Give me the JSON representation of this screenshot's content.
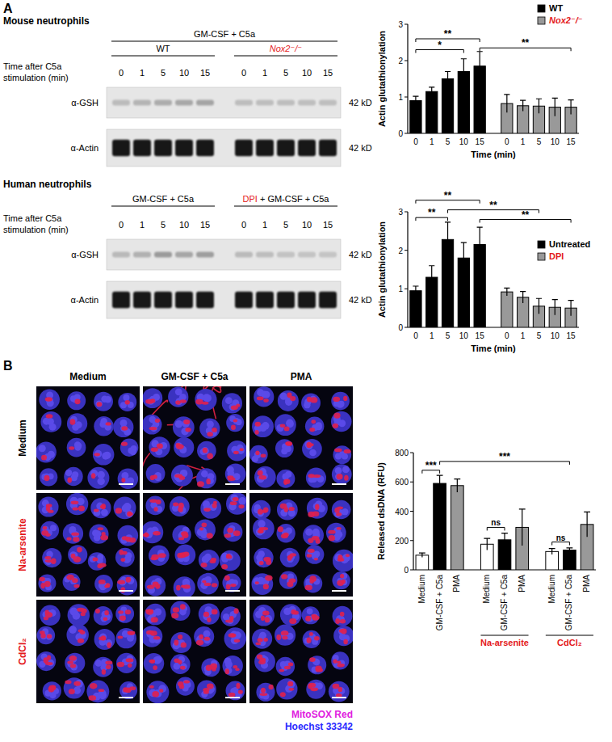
{
  "panel_labels": [
    "A",
    "B"
  ],
  "blots": [
    {
      "title": "Mouse neutrophils",
      "header": "GM-CSF + C5a",
      "groups": [
        [
          {
            "text": "WT"
          }
        ],
        [
          {
            "text": "Nox2⁻/⁻",
            "color": "#e41a1c",
            "italic": true
          }
        ]
      ],
      "time_label": [
        "Time after C5a",
        "stimulation (min)"
      ],
      "lanes": [
        "0",
        "1",
        "5",
        "10",
        "15",
        "0",
        "1",
        "5",
        "10",
        "15"
      ],
      "rows": [
        {
          "label": "α-GSH",
          "size": "42 kD"
        },
        {
          "label": "α-Actin",
          "size": "42 kD"
        }
      ]
    },
    {
      "title": "Human neutrophils",
      "groups": [
        [
          {
            "text": "GM-CSF + C5a"
          }
        ],
        [
          {
            "text": "DPI",
            "color": "#e41a1c"
          },
          {
            "text": " + GM-CSF + C5a"
          }
        ]
      ],
      "time_label": [
        "Time after C5a",
        "stimulation (min)"
      ],
      "lanes": [
        "0",
        "1",
        "5",
        "10",
        "15",
        "0",
        "1",
        "5",
        "10",
        "15"
      ],
      "rows": [
        {
          "label": "α-GSH",
          "size": "42 kD"
        },
        {
          "label": "α-Actin",
          "size": "42 kD"
        }
      ]
    }
  ],
  "microscopy": {
    "columns": [
      "Medium",
      "GM-CSF + C5a",
      "PMA"
    ],
    "rows": [
      {
        "label": "Medium"
      },
      {
        "label": "Na-arsenite",
        "color": "#e41a1c"
      },
      {
        "label": "CdCl₂",
        "color": "#e41a1c"
      }
    ],
    "stains": [
      {
        "label": "MitoSOX Red",
        "color": "#e020e0"
      },
      {
        "label": "Hoechst 33342",
        "color": "#2a2aff"
      }
    ]
  },
  "chart_data": [
    {
      "type": "bar",
      "y_label": "Actin glutathionylation",
      "x_label": "Time (min)",
      "categories": [
        "0",
        "1",
        "5",
        "10",
        "15",
        "0",
        "1",
        "5",
        "10",
        "15"
      ],
      "series": [
        {
          "name": "WT",
          "color": "#000000",
          "values": [
            0.9,
            1.15,
            1.5,
            1.7,
            1.85,
            null,
            null,
            null,
            null,
            null
          ],
          "errors": [
            0.12,
            0.12,
            0.2,
            0.35,
            0.4,
            null,
            null,
            null,
            null,
            null
          ]
        },
        {
          "name": "Nox2⁻/⁻",
          "color": "#999999",
          "values": [
            null,
            null,
            null,
            null,
            null,
            0.82,
            0.76,
            0.75,
            0.72,
            0.72
          ],
          "errors": [
            null,
            null,
            null,
            null,
            null,
            0.25,
            0.15,
            0.2,
            0.25,
            0.2
          ]
        }
      ],
      "ylim": [
        0,
        3
      ],
      "yticks": [
        0,
        1,
        2,
        3
      ],
      "legend": "top-right",
      "annotations": [
        {
          "text": "*",
          "from": 0,
          "to": 3,
          "y": 2.3
        },
        {
          "text": "**",
          "from": 0,
          "to": 4,
          "y": 2.6
        },
        {
          "text": "**",
          "from": 4,
          "to": 9,
          "y": 2.35
        }
      ]
    },
    {
      "type": "bar",
      "y_label": "Actin glutathionylation",
      "x_label": "Time (min)",
      "categories": [
        "0",
        "1",
        "5",
        "10",
        "15",
        "0",
        "1",
        "5",
        "10",
        "15"
      ],
      "series": [
        {
          "name": "Untreated",
          "color": "#000000",
          "values": [
            0.95,
            1.3,
            2.28,
            1.8,
            2.15,
            null,
            null,
            null,
            null,
            null
          ],
          "errors": [
            0.12,
            0.3,
            0.45,
            0.4,
            0.45,
            null,
            null,
            null,
            null,
            null
          ]
        },
        {
          "name": "DPI",
          "color": "#999999",
          "values": [
            null,
            null,
            null,
            null,
            null,
            0.92,
            0.78,
            0.55,
            0.52,
            0.5
          ],
          "errors": [
            null,
            null,
            null,
            null,
            null,
            0.1,
            0.15,
            0.2,
            0.2,
            0.2
          ]
        }
      ],
      "ylim": [
        0,
        3
      ],
      "yticks": [
        0,
        1,
        2,
        3
      ],
      "legend": "right",
      "annotations": [
        {
          "text": "**",
          "from": 0,
          "to": 2,
          "y": 2.85
        },
        {
          "text": "**",
          "from": 0,
          "to": 4,
          "y": 3.3
        },
        {
          "text": "**",
          "from": 2,
          "to": 7,
          "y": 3.05
        },
        {
          "text": "**",
          "from": 4,
          "to": 9,
          "y": 2.8
        }
      ]
    },
    {
      "type": "bar",
      "y_label": "Released dsDNA (RFU)",
      "categories": [
        "Medium",
        "GM-CSF + C5a",
        "PMA",
        "Medium",
        "GM-CSF + C5a",
        "PMA",
        "Medium",
        "GM-CSF + C5a",
        "PMA"
      ],
      "values": [
        100,
        590,
        575,
        175,
        205,
        290,
        125,
        135,
        310
      ],
      "errors": [
        15,
        55,
        45,
        40,
        45,
        125,
        20,
        15,
        85
      ],
      "colors": [
        "#ffffff",
        "#000000",
        "#999999",
        "#ffffff",
        "#000000",
        "#999999",
        "#ffffff",
        "#000000",
        "#999999"
      ],
      "ylim": [
        0,
        800
      ],
      "yticks": [
        0,
        200,
        400,
        600,
        800
      ],
      "groups": [
        {
          "label": "Na-arsenite",
          "from": 3,
          "to": 5,
          "color": "#e41a1c"
        },
        {
          "label": "CdCl₂",
          "from": 6,
          "to": 8,
          "color": "#e41a1c"
        }
      ],
      "annotations": [
        {
          "text": "***",
          "from": 0,
          "to": 1,
          "y": 680
        },
        {
          "text": "***",
          "from": 1,
          "to": 7,
          "y": 740
        },
        {
          "text": "ns",
          "from": 3,
          "to": 4,
          "y": 290
        },
        {
          "text": "ns",
          "from": 6,
          "to": 7,
          "y": 190
        }
      ]
    }
  ]
}
